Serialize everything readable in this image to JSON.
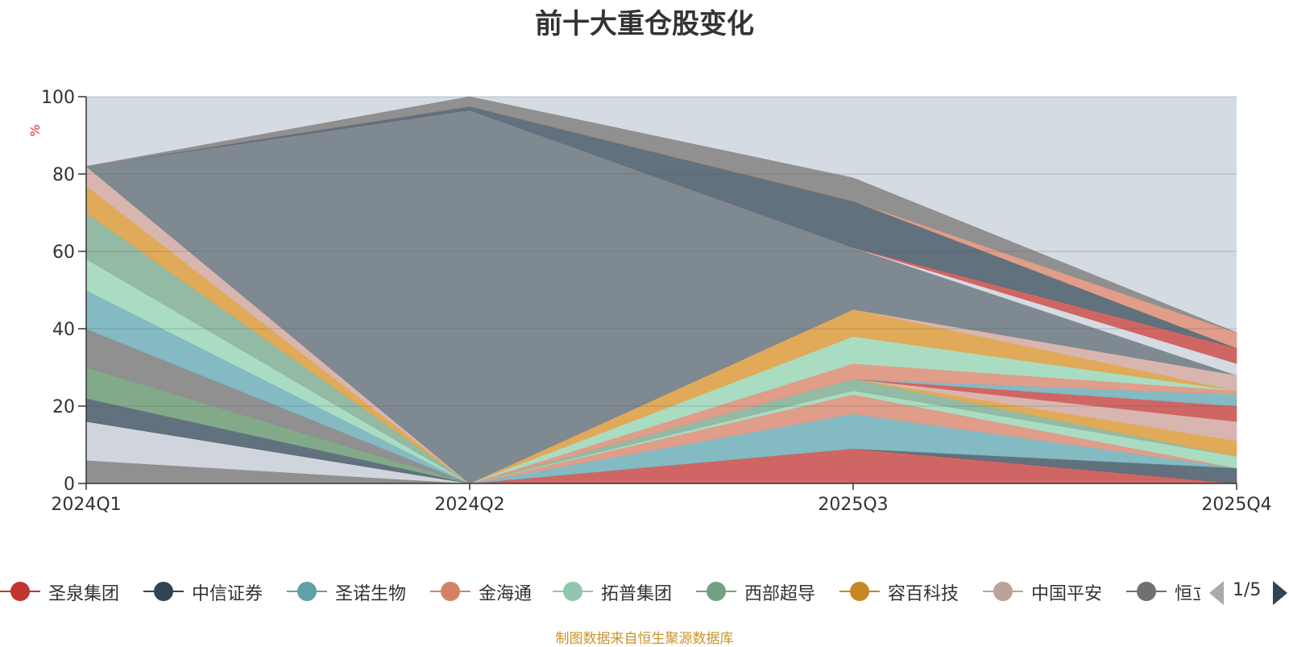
{
  "title": "前十大重仓股变化",
  "source_note": "制图数据来自恒生聚源数据库",
  "pager": {
    "text": "1/5"
  },
  "legend": [
    {
      "name": "圣泉集团",
      "color": "#c23531"
    },
    {
      "name": "中信证券",
      "color": "#2f4554"
    },
    {
      "name": "圣诺生物",
      "color": "#61a0a8"
    },
    {
      "name": "金海通",
      "color": "#d48265"
    },
    {
      "name": "拓普集团",
      "color": "#91c7ae"
    },
    {
      "name": "西部超导",
      "color": "#749f83"
    },
    {
      "name": "容百科技",
      "color": "#ca8622"
    },
    {
      "name": "中国平安",
      "color": "#bda29a"
    },
    {
      "name": "恒立液压",
      "color": "#6e7074"
    }
  ],
  "chart_data": {
    "type": "area",
    "stacked": true,
    "title": "前十大重仓股变化",
    "ylabel": "%",
    "ylim": [
      0,
      100
    ],
    "yticks": [
      0,
      20,
      40,
      60,
      80,
      100
    ],
    "categories": [
      "2024Q1",
      "2024Q2",
      "2025Q3",
      "2025Q4"
    ],
    "grid": true,
    "plot_background": "#d5dbe2",
    "legend_position": "bottom",
    "layers": [
      {
        "color": "#8c8c8c",
        "values": [
          6,
          0,
          0,
          0
        ]
      },
      {
        "color": "#d0d4dc",
        "values": [
          10,
          0,
          0,
          0
        ]
      },
      {
        "color": "#5c6b78",
        "values": [
          6,
          0,
          0,
          0
        ]
      },
      {
        "color": "#7da884",
        "values": [
          8,
          0,
          0,
          0
        ]
      },
      {
        "color": "#8c8c8c",
        "values": [
          10,
          0,
          0,
          0
        ]
      },
      {
        "color": "#7fb8c0",
        "values": [
          10,
          0,
          0,
          0
        ]
      },
      {
        "color": "#a8dcc0",
        "values": [
          8,
          0,
          0,
          0
        ]
      },
      {
        "color": "#8fb8a0",
        "values": [
          12,
          0,
          0,
          0
        ]
      },
      {
        "color": "#e0a850",
        "values": [
          7,
          0,
          0,
          0
        ]
      },
      {
        "color": "#d8b4ac",
        "values": [
          5,
          0,
          0,
          0
        ]
      },
      {
        "color": "#7a858c",
        "values": [
          0,
          0,
          0,
          0
        ]
      },
      {
        "color": "#d0605c",
        "values": [
          0,
          0,
          9,
          0
        ]
      },
      {
        "color": "#5c6b78",
        "values": [
          0,
          0,
          0,
          4
        ]
      },
      {
        "color": "#7fb8c0",
        "values": [
          0,
          0,
          9,
          0
        ]
      },
      {
        "color": "#e09a84",
        "values": [
          0,
          0,
          5,
          0
        ]
      },
      {
        "color": "#a8dcc0",
        "values": [
          0,
          0,
          1,
          3
        ]
      },
      {
        "color": "#8fb8a0",
        "values": [
          0,
          0,
          3,
          0
        ]
      },
      {
        "color": "#e0a850",
        "values": [
          0,
          0,
          0,
          4
        ]
      },
      {
        "color": "#d8b4ac",
        "values": [
          0,
          0,
          0,
          5
        ]
      },
      {
        "color": "#e09a84",
        "values": [
          0,
          0,
          0,
          0
        ]
      },
      {
        "color": "#d0605c",
        "values": [
          0,
          0,
          0,
          4
        ]
      },
      {
        "color": "#7fb8c0",
        "values": [
          0,
          0,
          0,
          3
        ]
      },
      {
        "color": "#e09a84",
        "values": [
          0,
          0,
          4,
          1
        ]
      },
      {
        "color": "#a8dcc0",
        "values": [
          0,
          0,
          7,
          0
        ]
      },
      {
        "color": "#e0a850",
        "values": [
          0,
          0,
          7,
          0
        ]
      },
      {
        "color": "#d8b4ac",
        "values": [
          0,
          0,
          0,
          4
        ]
      },
      {
        "color": "#7a858c",
        "values": [
          0,
          96.5,
          16,
          0
        ]
      },
      {
        "color": "#d5dbe2",
        "values": [
          0,
          0,
          0,
          3
        ]
      },
      {
        "color": "#d0605c",
        "values": [
          0,
          0,
          0,
          4
        ]
      },
      {
        "color": "#5c6b78",
        "values": [
          0,
          1,
          12,
          0
        ]
      },
      {
        "color": "#e09a84",
        "values": [
          0,
          0,
          0,
          4
        ]
      },
      {
        "color": "#8c8c8c",
        "values": [
          0,
          2.5,
          6,
          0
        ]
      }
    ]
  }
}
